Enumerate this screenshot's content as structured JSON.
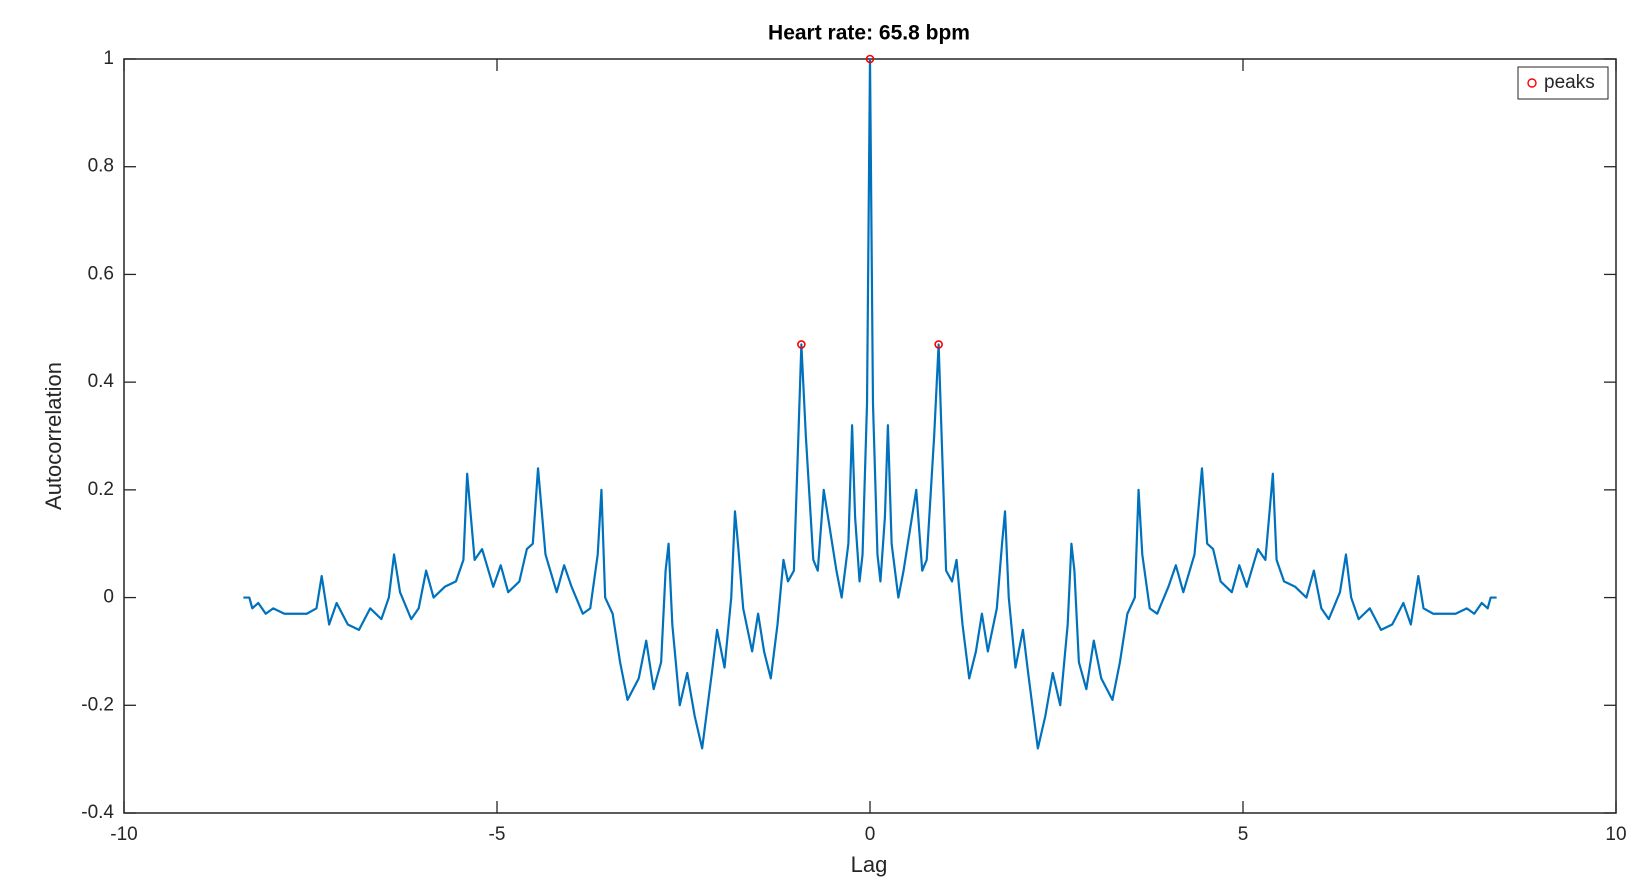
{
  "chart_data": {
    "type": "line",
    "title": "Heart rate: 65.8 bpm",
    "x_label": "Lag",
    "y_label": "Autocorrelation",
    "xlim": [
      -10,
      10
    ],
    "ylim": [
      -0.4,
      1
    ],
    "xticks": [
      -10,
      -5,
      0,
      5,
      10
    ],
    "yticks": [
      -0.4,
      -0.2,
      0,
      0.2,
      0.4,
      0.6,
      0.8,
      1
    ],
    "legend": "upper right",
    "series": [
      {
        "type": "line",
        "color": "#0072bd",
        "x": [
          -8.4,
          -8.32,
          -8.28,
          -8.2,
          -8.1,
          -8.0,
          -7.85,
          -7.7,
          -7.55,
          -7.42,
          -7.35,
          -7.25,
          -7.15,
          -7.0,
          -6.85,
          -6.7,
          -6.55,
          -6.45,
          -6.38,
          -6.3,
          -6.15,
          -6.05,
          -5.95,
          -5.85,
          -5.7,
          -5.55,
          -5.45,
          -5.4,
          -5.3,
          -5.2,
          -5.05,
          -4.95,
          -4.85,
          -4.7,
          -4.6,
          -4.52,
          -4.45,
          -4.35,
          -4.2,
          -4.1,
          -4.0,
          -3.85,
          -3.75,
          -3.65,
          -3.6,
          -3.55,
          -3.45,
          -3.35,
          -3.25,
          -3.1,
          -3.0,
          -2.9,
          -2.8,
          -2.74,
          -2.7,
          -2.65,
          -2.55,
          -2.45,
          -2.35,
          -2.25,
          -2.12,
          -2.05,
          -1.95,
          -1.86,
          -1.81,
          -1.77,
          -1.7,
          -1.58,
          -1.5,
          -1.42,
          -1.33,
          -1.24,
          -1.16,
          -1.1,
          -1.02,
          -0.96,
          -0.92,
          -0.86,
          -0.76,
          -0.7,
          -0.62,
          -0.45,
          -0.38,
          -0.29,
          -0.24,
          -0.2,
          -0.14,
          -0.1,
          -0.04,
          0,
          0.04,
          0.1,
          0.14,
          0.2,
          0.24,
          0.29,
          0.38,
          0.45,
          0.62,
          0.7,
          0.76,
          0.86,
          0.92,
          0.96,
          1.02,
          1.1,
          1.16,
          1.24,
          1.33,
          1.42,
          1.5,
          1.58,
          1.7,
          1.77,
          1.81,
          1.86,
          1.95,
          2.05,
          2.12,
          2.25,
          2.35,
          2.45,
          2.55,
          2.65,
          2.7,
          2.74,
          2.8,
          2.9,
          3.0,
          3.1,
          3.25,
          3.35,
          3.45,
          3.55,
          3.6,
          3.65,
          3.75,
          3.85,
          4.0,
          4.1,
          4.2,
          4.35,
          4.45,
          4.52,
          4.6,
          4.7,
          4.85,
          4.95,
          5.05,
          5.2,
          5.3,
          5.4,
          5.45,
          5.55,
          5.7,
          5.85,
          5.95,
          6.05,
          6.15,
          6.3,
          6.38,
          6.45,
          6.55,
          6.7,
          6.85,
          7.0,
          7.15,
          7.25,
          7.35,
          7.42,
          7.55,
          7.7,
          7.85,
          8.0,
          8.1,
          8.2,
          8.28,
          8.32,
          8.4
        ],
        "values": [
          0,
          0,
          -0.02,
          -0.01,
          -0.03,
          -0.02,
          -0.03,
          -0.03,
          -0.03,
          -0.02,
          0.04,
          -0.05,
          -0.01,
          -0.05,
          -0.06,
          -0.02,
          -0.04,
          0,
          0.08,
          0.01,
          -0.04,
          -0.02,
          0.05,
          0,
          0.02,
          0.03,
          0.07,
          0.23,
          0.07,
          0.09,
          0.02,
          0.06,
          0.01,
          0.03,
          0.09,
          0.1,
          0.24,
          0.08,
          0.01,
          0.06,
          0.02,
          -0.03,
          -0.02,
          0.08,
          0.2,
          0,
          -0.03,
          -0.12,
          -0.19,
          -0.15,
          -0.08,
          -0.17,
          -0.12,
          0.05,
          0.1,
          -0.05,
          -0.2,
          -0.14,
          -0.22,
          -0.28,
          -0.14,
          -0.06,
          -0.13,
          0,
          0.16,
          0.1,
          -0.02,
          -0.1,
          -0.03,
          -0.1,
          -0.15,
          -0.05,
          0.07,
          0.03,
          0.05,
          0.3,
          0.47,
          0.3,
          0.07,
          0.05,
          0.2,
          0.05,
          0,
          0.1,
          0.32,
          0.15,
          0.03,
          0.08,
          0.36,
          1,
          0.36,
          0.08,
          0.03,
          0.15,
          0.32,
          0.1,
          0,
          0.05,
          0.2,
          0.05,
          0.07,
          0.3,
          0.47,
          0.3,
          0.05,
          0.03,
          0.07,
          -0.05,
          -0.15,
          -0.1,
          -0.03,
          -0.1,
          -0.02,
          0.1,
          0.16,
          0,
          -0.13,
          -0.06,
          -0.14,
          -0.28,
          -0.22,
          -0.14,
          -0.2,
          -0.05,
          0.1,
          0.05,
          -0.12,
          -0.17,
          -0.08,
          -0.15,
          -0.19,
          -0.12,
          -0.03,
          0,
          0.2,
          0.08,
          -0.02,
          -0.03,
          0.02,
          0.06,
          0.01,
          0.08,
          0.24,
          0.1,
          0.09,
          0.03,
          0.01,
          0.06,
          0.02,
          0.09,
          0.07,
          0.23,
          0.07,
          0.03,
          0.02,
          0,
          0.05,
          -0.02,
          -0.04,
          0.01,
          0.08,
          0,
          -0.04,
          -0.02,
          -0.06,
          -0.05,
          -0.01,
          -0.05,
          0.04,
          -0.02,
          -0.03,
          -0.03,
          -0.03,
          -0.02,
          -0.03,
          -0.01,
          -0.02,
          0,
          0
        ]
      },
      {
        "type": "scatter",
        "name": "peaks",
        "color": "#ff0000",
        "x": [
          -0.92,
          0,
          0.92
        ],
        "values": [
          0.47,
          1,
          0.47
        ]
      }
    ]
  }
}
